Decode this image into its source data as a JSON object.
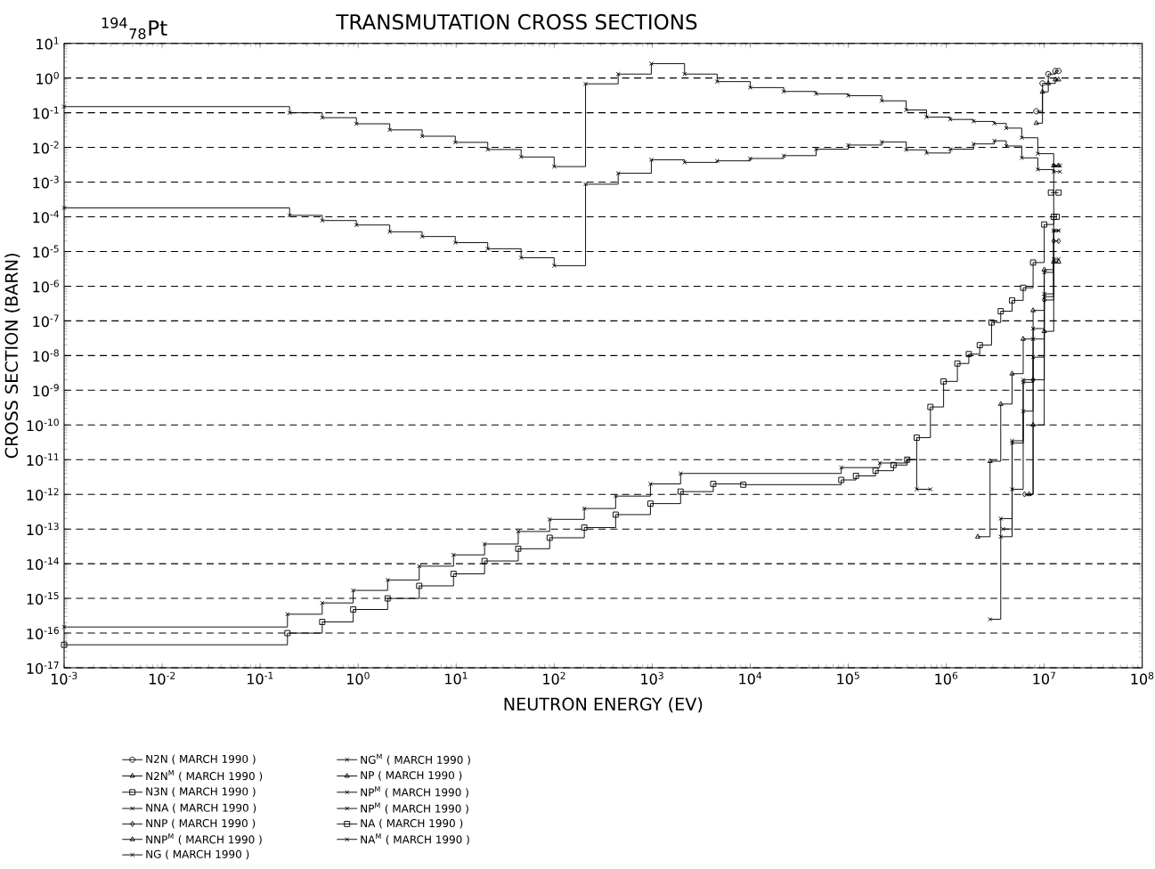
{
  "chart_data": {
    "type": "step",
    "title": "TRANSMUTATION CROSS SECTIONS",
    "subtitle": "$^{194}$$_{78}$Pt",
    "xlabel": "NEUTRON ENERGY (EV)",
    "ylabel": "CROSS SECTION (BARN)",
    "log": "xy",
    "grid": "y",
    "legend": "bottom",
    "line_style": "solid",
    "xlim": [
      0.001,
      100000000
    ],
    "ylim": [
      1e-17,
      10
    ],
    "xticks": [
      {
        "value": 0.001,
        "label": "10$^{-3}$"
      },
      {
        "value": 0.01,
        "label": "10$^{-2}$"
      },
      {
        "value": 0.1,
        "label": "10$^{-1}$"
      },
      {
        "value": 1,
        "label": "10$^{0}$"
      },
      {
        "value": 10,
        "label": "10$^{1}$"
      },
      {
        "value": 100,
        "label": "10$^{2}$"
      },
      {
        "value": 1000,
        "label": "10$^{3}$"
      },
      {
        "value": 10000,
        "label": "10$^{4}$"
      },
      {
        "value": 100000,
        "label": "10$^{5}$"
      },
      {
        "value": 1000000,
        "label": "10$^{6}$"
      },
      {
        "value": 10000000,
        "label": "10$^{7}$"
      },
      {
        "value": 100000000,
        "label": "10$^{8}$"
      }
    ],
    "yticks": [
      {
        "value": 1e-17,
        "label": "10$^{-17}$"
      },
      {
        "value": 1e-16,
        "label": "10$^{-16}$"
      },
      {
        "value": 1e-15,
        "label": "10$^{-15}$"
      },
      {
        "value": 1e-14,
        "label": "10$^{-14}$"
      },
      {
        "value": 1e-13,
        "label": "10$^{-13}$"
      },
      {
        "value": 1e-12,
        "label": "10$^{-12}$"
      },
      {
        "value": 1e-11,
        "label": "10$^{-11}$"
      },
      {
        "value": 1e-10,
        "label": "10$^{-10}$"
      },
      {
        "value": 1e-09,
        "label": "10$^{-9}$"
      },
      {
        "value": 1e-08,
        "label": "10$^{-8}$"
      },
      {
        "value": 1e-07,
        "label": "10$^{-7}$"
      },
      {
        "value": 1e-06,
        "label": "10$^{-6}$"
      },
      {
        "value": 1e-05,
        "label": "10$^{-5}$"
      },
      {
        "value": 0.0001,
        "label": "10$^{-4}$"
      },
      {
        "value": 0.001,
        "label": "10$^{-3}$"
      },
      {
        "value": 0.01,
        "label": "10$^{-2}$"
      },
      {
        "value": 0.1,
        "label": "10$^{-1}$"
      },
      {
        "value": 1,
        "label": "10$^{0}$"
      },
      {
        "value": 10,
        "label": "10$^{1}$"
      }
    ],
    "series": [
      {
        "name": "N2N ( MARCH 1990 )",
        "color": "#000000",
        "marker": "circle",
        "x": [
          8300000,
          9600000,
          11000000,
          13000000,
          14000000
        ],
        "values": [
          0.11,
          0.7,
          1.3,
          1.6,
          1.6
        ]
      },
      {
        "name": "N2N$^{M}$ ( MARCH 1990 )",
        "color": "#000000",
        "marker": "triangle",
        "x": [
          8300000,
          9600000,
          11000000,
          13000000,
          14000000
        ],
        "values": [
          0.05,
          0.4,
          0.7,
          0.9,
          0.9
        ]
      },
      {
        "name": "N3N ( MARCH 1990 )",
        "color": "#000000",
        "marker": "square",
        "x": [
          11700000,
          14000000
        ],
        "values": [
          0.0005,
          0.0005
        ]
      },
      {
        "name": "NNA ( MARCH 1990 )",
        "color": "#000000",
        "marker": "cross",
        "x": [
          3800000,
          4700000,
          6100000,
          7700000,
          10000000,
          12500000,
          14000000
        ],
        "values": [
          1e-13,
          3e-11,
          2e-09,
          3e-08,
          5e-07,
          6e-06,
          6e-06
        ]
      },
      {
        "name": "NNP ( MARCH 1990 )",
        "color": "#000000",
        "marker": "diamond",
        "x": [
          6300000,
          7700000,
          10000000,
          12500000,
          14000000
        ],
        "values": [
          1e-12,
          2e-09,
          4e-07,
          2e-05,
          2e-05
        ]
      },
      {
        "name": "NNP$^{M}$ ( MARCH 1990 )",
        "color": "#000000",
        "marker": "triangle",
        "x": [
          7000000,
          7700000,
          10000000,
          12500000,
          14000000
        ],
        "values": [
          1e-12,
          1e-10,
          5e-08,
          5e-06,
          5e-06
        ]
      },
      {
        "name": "NG ( MARCH 1990 )",
        "color": "#000000",
        "marker": "cross",
        "x": [
          0.001,
          0.2,
          0.43,
          0.96,
          2.1,
          4.5,
          9.8,
          21,
          46,
          100,
          209,
          450,
          980,
          2140,
          4600,
          10000,
          22000,
          47000,
          100000,
          220000,
          390000,
          630000,
          1100000,
          1900000,
          3100000,
          4100000,
          5900000,
          8600000,
          12500000,
          14500000
        ],
        "values": [
          0.15,
          0.1,
          0.072,
          0.048,
          0.032,
          0.021,
          0.014,
          0.0087,
          0.0053,
          0.0028,
          0.68,
          1.3,
          2.6,
          1.3,
          0.79,
          0.53,
          0.41,
          0.35,
          0.31,
          0.22,
          0.12,
          0.075,
          0.064,
          0.056,
          0.049,
          0.036,
          0.019,
          0.0066,
          0.003,
          0.003
        ]
      },
      {
        "name": "NG$^{M}$ ( MARCH 1990 )",
        "color": "#000000",
        "marker": "cross",
        "x": [
          0.001,
          0.2,
          0.43,
          0.96,
          2.1,
          4.5,
          9.8,
          21,
          46,
          100,
          209,
          450,
          980,
          2140,
          4600,
          10000,
          22000,
          47000,
          100000,
          220000,
          390000,
          630000,
          1100000,
          1900000,
          3100000,
          4100000,
          5900000,
          8600000,
          12500000,
          14500000
        ],
        "values": [
          0.00018,
          0.00011,
          7.8e-05,
          5.8e-05,
          3.7e-05,
          2.7e-05,
          1.8e-05,
          1.2e-05,
          6.6e-06,
          3.9e-06,
          0.00087,
          0.0018,
          0.0044,
          0.0037,
          0.0041,
          0.0048,
          0.0058,
          0.0089,
          0.0117,
          0.0144,
          0.0085,
          0.0069,
          0.0089,
          0.0126,
          0.0155,
          0.011,
          0.005,
          0.0023,
          0.002,
          0.002
        ]
      },
      {
        "name": "NP ( MARCH 1990 )",
        "color": "#000000",
        "marker": "triangle",
        "x": [
          2100000,
          2800000,
          3600000,
          4700000,
          6100000,
          7700000,
          10000000,
          12500000,
          14000000
        ],
        "values": [
          6e-14,
          9e-12,
          4e-10,
          3e-09,
          3e-08,
          2e-07,
          3e-06,
          0.003,
          0.003
        ]
      },
      {
        "name": "NP$^{M}$ ( MARCH 1990 )",
        "color": "#000000",
        "marker": "cross",
        "x": [
          2800000,
          3600000,
          4700000,
          6100000,
          7700000,
          10000000,
          12500000,
          14000000
        ],
        "values": [
          2.5e-16,
          2e-13,
          3.5e-11,
          1.7e-09,
          6e-08,
          2.5e-06,
          4e-05,
          4e-05
        ]
      },
      {
        "name": "NP$^{M}$ ( MARCH 1990 )",
        "color": "#000000",
        "marker": "cross",
        "x": [
          3600000,
          4700000,
          6100000,
          7700000,
          10000000,
          12500000,
          14000000
        ],
        "values": [
          6e-14,
          1.4e-12,
          2.5e-10,
          9e-09,
          6e-07,
          4e-05,
          4e-05
        ]
      },
      {
        "name": "NA ( MARCH 1990 )",
        "color": "#000000",
        "marker": "square",
        "x": [
          0.001,
          0.19,
          0.43,
          0.89,
          2.0,
          4.2,
          9.4,
          19.5,
          43,
          90,
          203,
          424,
          960,
          1950,
          4200,
          8500,
          85000,
          120000,
          190000,
          290000,
          400000,
          500000,
          690000,
          940000,
          1300000,
          1700000,
          2200000,
          2900000,
          3600000,
          4700000,
          6100000,
          7700000,
          10000000,
          12500000,
          13400000
        ],
        "values": [
          4.6e-17,
          1e-16,
          2.1e-16,
          4.8e-16,
          1e-15,
          2.3e-15,
          5.1e-15,
          1.2e-14,
          2.7e-14,
          5.6e-14,
          1.1e-13,
          2.6e-13,
          5.4e-13,
          1.2e-12,
          2e-12,
          1.9e-12,
          2.6e-12,
          3.4e-12,
          4.8e-12,
          7e-12,
          1e-11,
          4.3e-11,
          3.3e-10,
          1.8e-09,
          5.9e-09,
          1.1e-08,
          2e-08,
          9e-08,
          1.9e-07,
          3.9e-07,
          9e-07,
          4.8e-06,
          6e-05,
          0.0001,
          0.0001
        ]
      },
      {
        "name": "NA$^{M}$ ( MARCH 1990 )",
        "color": "#000000",
        "marker": "cross",
        "x": [
          0.001,
          0.19,
          0.43,
          0.89,
          2.0,
          4.2,
          9.4,
          19.5,
          43,
          90,
          203,
          424,
          960,
          1950,
          85000,
          210000,
          400000,
          500000,
          690000
        ],
        "values": [
          1.5e-16,
          3.5e-16,
          7.4e-16,
          1.7e-15,
          3.4e-15,
          8.5e-15,
          1.8e-14,
          3.7e-14,
          8.5e-14,
          1.9e-13,
          3.9e-13,
          8.9e-13,
          2e-12,
          4e-12,
          5.9e-12,
          8e-12,
          1e-11,
          1.4e-12,
          1.4e-12
        ]
      }
    ]
  }
}
